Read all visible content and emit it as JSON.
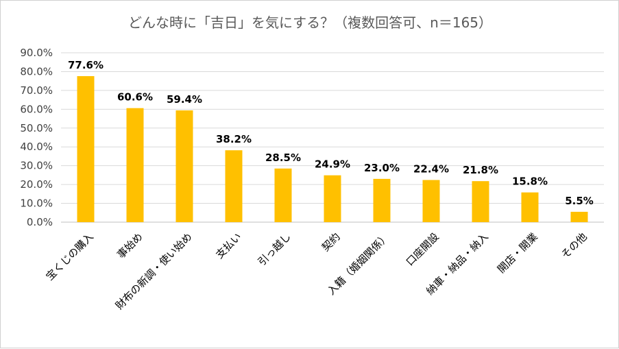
{
  "chart_data": {
    "type": "bar",
    "title": "どんな時に「吉日」を気にする？（複数回答可、n＝165）",
    "categories": [
      "宝くじの購入",
      "事始め",
      "財布の新調・使い始め",
      "支払い",
      "引っ越し",
      "契約",
      "入籍（婚姻関係）",
      "口座開設",
      "納車・納品・納入",
      "開店・開業",
      "その他"
    ],
    "values": [
      77.6,
      60.6,
      59.4,
      38.2,
      28.5,
      24.9,
      23.0,
      22.4,
      21.8,
      15.8,
      5.5
    ],
    "data_labels": [
      "77.6%",
      "60.6%",
      "59.4%",
      "38.2%",
      "28.5%",
      "24.9%",
      "23.0%",
      "22.4%",
      "21.8%",
      "15.8%",
      "5.5%"
    ],
    "y_ticks": [
      "0.0%",
      "10.0%",
      "20.0%",
      "30.0%",
      "40.0%",
      "50.0%",
      "60.0%",
      "70.0%",
      "80.0%",
      "90.0%"
    ],
    "ylim": [
      0,
      90
    ],
    "xlabel": "",
    "ylabel": "",
    "grid": true,
    "bar_color": "#FFC000"
  }
}
